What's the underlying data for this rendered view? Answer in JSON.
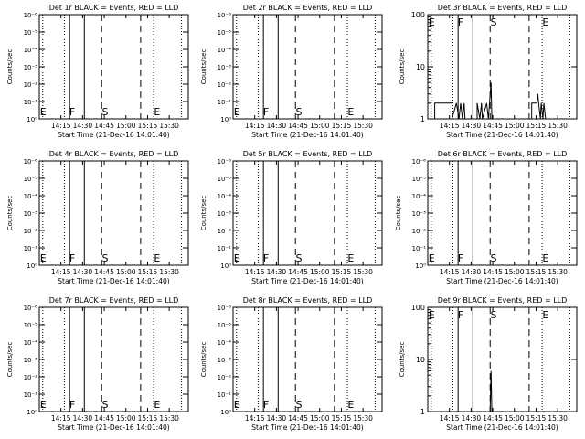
{
  "xlabel": "Start Time (21-Dec-16 14:01:40)",
  "ylabel": "Counts/sec",
  "xticks": [
    "14:15",
    "14:30",
    "14:45",
    "15:00",
    "15:15",
    "15:30"
  ],
  "markers": [
    "E",
    "F",
    "S",
    "E"
  ],
  "log_ticks_decades": [
    "10⁰",
    "10⁻¹",
    "10⁻²",
    "10⁻³",
    "10⁻⁴",
    "10⁻⁵",
    "10⁻⁶"
  ],
  "log_ticks_counts": [
    "1",
    "10",
    "100"
  ],
  "chart_data": [
    {
      "type": "line",
      "title": "Det 1r BLACK = Events, RED = LLD",
      "ylim": [
        1e-06,
        1
      ],
      "yscale": "log",
      "series": []
    },
    {
      "type": "line",
      "title": "Det 2r BLACK = Events, RED = LLD",
      "ylim": [
        1e-06,
        1
      ],
      "yscale": "log",
      "series": []
    },
    {
      "type": "line",
      "title": "Det 3r BLACK = Events, RED = LLD",
      "ylim": [
        1,
        100
      ],
      "yscale": "log",
      "series": [
        {
          "values": [
            [
              14.08,
              1
            ],
            [
              14.08,
              2
            ],
            [
              14.28,
              2
            ],
            [
              14.28,
              1
            ],
            [
              14.33,
              2
            ],
            [
              14.36,
              1
            ],
            [
              14.38,
              2
            ],
            [
              14.4,
              1
            ],
            [
              14.42,
              2
            ],
            [
              14.43,
              1
            ],
            [
              14.57,
              1
            ],
            [
              14.57,
              2
            ],
            [
              14.6,
              1
            ],
            [
              14.62,
              2
            ],
            [
              14.63,
              1
            ],
            [
              14.68,
              2
            ],
            [
              14.7,
              1
            ],
            [
              14.73,
              5
            ],
            [
              14.74,
              1
            ],
            [
              15.2,
              1
            ],
            [
              15.2,
              2
            ],
            [
              15.26,
              2
            ],
            [
              15.27,
              3
            ],
            [
              15.28,
              2
            ],
            [
              15.3,
              1
            ],
            [
              15.31,
              2
            ],
            [
              15.33,
              1
            ],
            [
              15.34,
              2
            ],
            [
              15.36,
              1
            ]
          ]
        }
      ]
    },
    {
      "type": "line",
      "title": "Det 4r BLACK = Events, RED = LLD",
      "ylim": [
        1e-06,
        1
      ],
      "yscale": "log",
      "series": []
    },
    {
      "type": "line",
      "title": "Det 5r BLACK = Events, RED = LLD",
      "ylim": [
        1e-06,
        1
      ],
      "yscale": "log",
      "series": []
    },
    {
      "type": "line",
      "title": "Det 6r BLACK = Events, RED = LLD",
      "ylim": [
        1e-06,
        1
      ],
      "yscale": "log",
      "series": []
    },
    {
      "type": "line",
      "title": "Det 7r BLACK = Events, RED = LLD",
      "ylim": [
        1e-06,
        1
      ],
      "yscale": "log",
      "series": []
    },
    {
      "type": "line",
      "title": "Det 8r BLACK = Events, RED = LLD",
      "ylim": [
        1e-06,
        1
      ],
      "yscale": "log",
      "series": []
    },
    {
      "type": "line",
      "title": "Det 9r BLACK = Events, RED = LLD",
      "ylim": [
        1,
        100
      ],
      "yscale": "log",
      "series": [
        {
          "values": [
            [
              14.72,
              1
            ],
            [
              14.73,
              6
            ],
            [
              14.74,
              1
            ]
          ]
        }
      ]
    }
  ]
}
